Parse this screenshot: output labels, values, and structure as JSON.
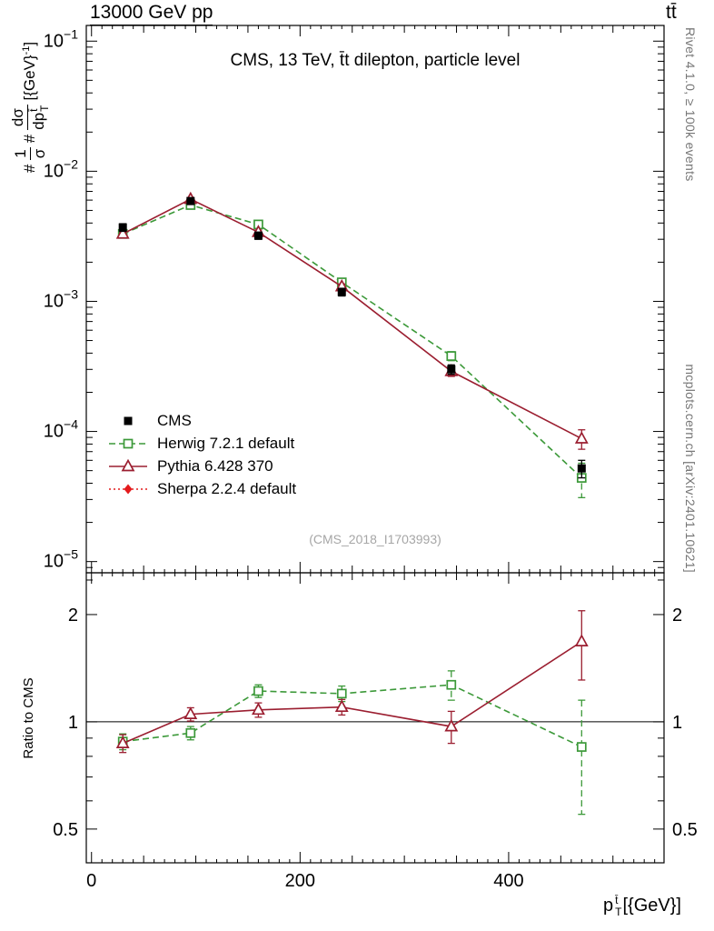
{
  "page": {
    "title_left": "13000 GeV pp",
    "title_right": "tt̄",
    "inner_title": "CMS, 13 TeV, t̄t dilepton, particle level",
    "watermark": "(CMS_2018_I1703993)",
    "right_note_top": "Rivet 4.1.0, ≥ 100k events",
    "right_note_bottom": "mcplots.cern.ch [arXiv:2401.10621]",
    "ratio_ylabel": "Ratio to CMS"
  },
  "ylabel": {
    "hash1": "#",
    "f1_num": "1",
    "f1_den": "σ",
    "hash2": "#",
    "f2_num": "dσ",
    "f2_den_base": "dp",
    "f2_den_sup": "t̄",
    "f2_den_sub": "T",
    "unit": "[{GeV}",
    "unit_exp": "-1",
    "unit_close": "]"
  },
  "xlabel": {
    "base": "p",
    "sup": "t̄",
    "sub": "T",
    "unit": "[{GeV}]"
  },
  "chart_data": {
    "type": "line",
    "title": "CMS, 13 TeV, t̄t dilepton, particle level",
    "xlabel": "p_T^t̄ [{GeV}]",
    "ylabel": "# 1/σ dσ/dp_T^t̄ [{GeV}^-1]",
    "ratio_label": "Ratio to CMS",
    "yscale": "log",
    "x": [
      30,
      95,
      160,
      240,
      345,
      470
    ],
    "xlim": [
      -5,
      549
    ],
    "ylim_main": [
      8.2e-06,
      0.132
    ],
    "ylim_ratio": [
      0.402,
      2.62
    ],
    "xticks": [
      0,
      200,
      400
    ],
    "ytick_exponents": [
      -1,
      -2,
      -3,
      -4,
      -5
    ],
    "ratio_ticks": [
      2,
      1,
      0.5
    ],
    "ratio_minor_ticks": [
      0.6,
      0.7,
      0.8,
      0.9,
      2.5
    ],
    "ratio_reference": 1,
    "legend_position": "left-middle",
    "series": [
      {
        "name": "CMS",
        "color": "#000000",
        "marker": "square-filled",
        "line": "none",
        "y": [
          0.0037,
          0.0059,
          0.0032,
          0.00118,
          0.0003,
          5.2e-05
        ],
        "yerr": [
          0.00025,
          0.0003,
          0.0002,
          8e-05,
          2.5e-05,
          8e-06
        ],
        "ratio": [],
        "ratio_err": []
      },
      {
        "name": "Herwig 7.2.1 default",
        "color": "#3c9939",
        "marker": "square-open",
        "line": "dashed",
        "y": [
          0.0033,
          0.0055,
          0.0039,
          0.0014,
          0.00038,
          4.4e-05
        ],
        "yerr": [
          0.00012,
          0.00018,
          0.00015,
          7e-05,
          3e-05,
          1.3e-05
        ],
        "ratio": [
          0.88,
          0.93,
          1.22,
          1.2,
          1.27,
          0.85
        ],
        "ratio_err": [
          0.045,
          0.04,
          0.05,
          0.06,
          0.12,
          0.3
        ]
      },
      {
        "name": "Pythia 6.428 370",
        "color": "#9b1e30",
        "marker": "triangle-open",
        "line": "solid",
        "y": [
          0.0033,
          0.0061,
          0.0034,
          0.0013,
          0.00029,
          8.8e-05
        ],
        "yerr": [
          0.00012,
          0.00018,
          0.00013,
          6e-05,
          2.5e-05,
          1.5e-05
        ],
        "ratio": [
          0.87,
          1.05,
          1.08,
          1.1,
          0.97,
          1.68
        ],
        "ratio_err": [
          0.05,
          0.045,
          0.05,
          0.055,
          0.1,
          0.37
        ]
      },
      {
        "name": "Sherpa 2.2.4 default",
        "color": "#e41a1c",
        "marker": "diamond-filled",
        "line": "dotted",
        "y": [],
        "yerr": [],
        "ratio": [],
        "ratio_err": []
      }
    ]
  }
}
